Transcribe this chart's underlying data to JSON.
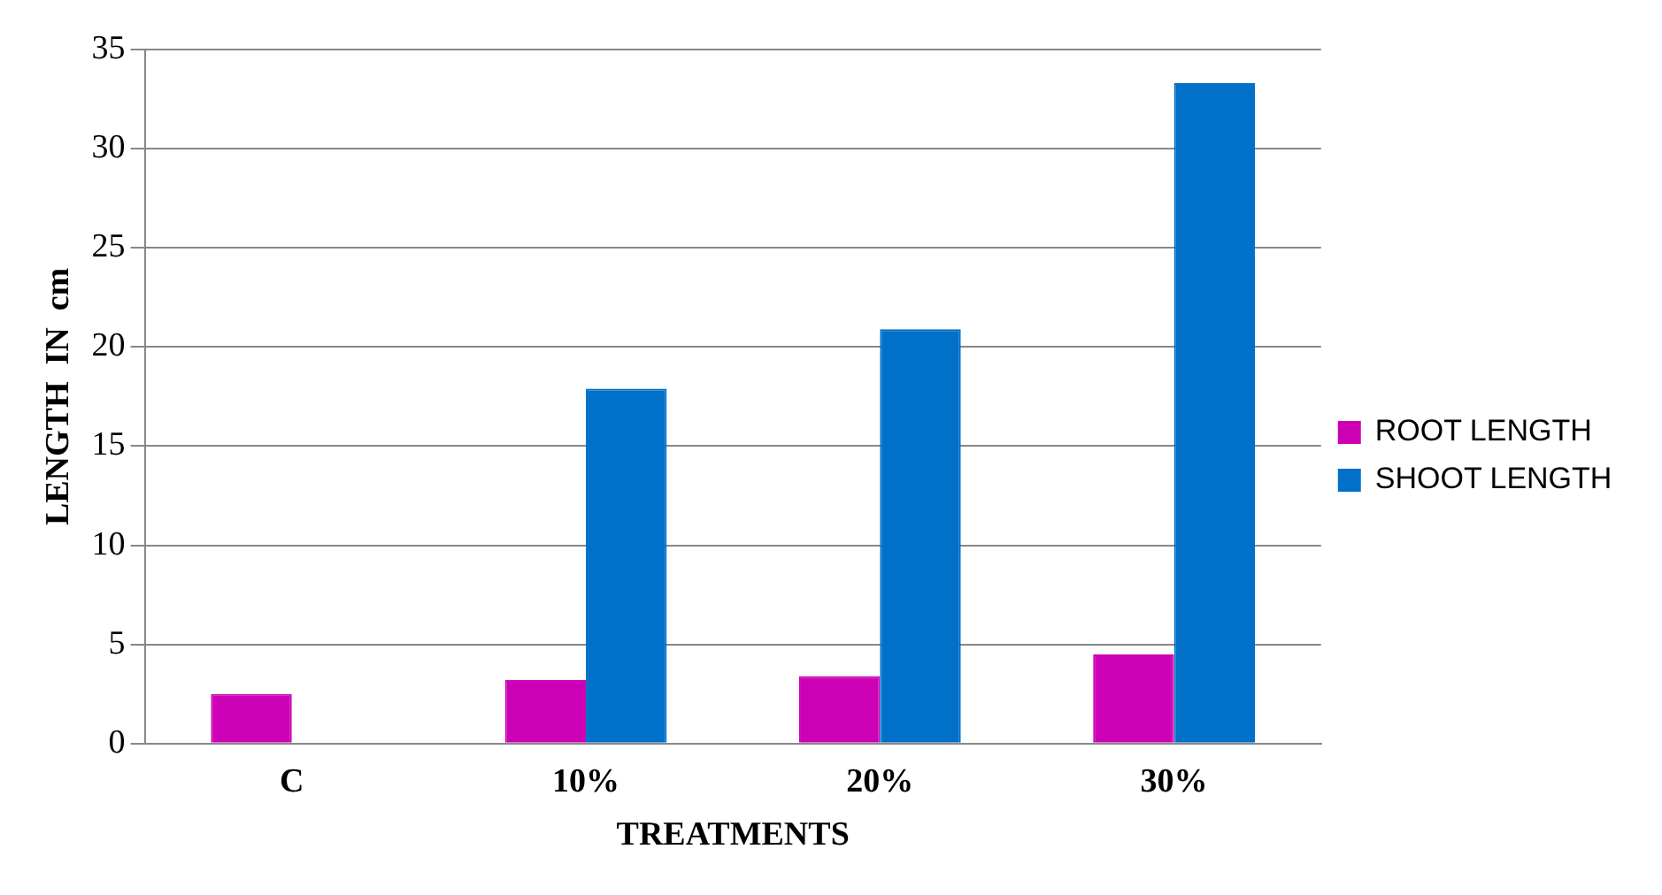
{
  "chart_data": {
    "type": "bar",
    "xlabel": "TREATMENTS",
    "ylabel": "LENGTH  IN  cm",
    "categories": [
      "C",
      "10%",
      "20%",
      "30%"
    ],
    "series": [
      {
        "name": "ROOT LENGTH",
        "color": "#cc00b4",
        "values": [
          2.5,
          3.2,
          3.4,
          4.5
        ]
      },
      {
        "name": "SHOOT LENGTH",
        "color": "#0070c8",
        "values": [
          null,
          17.9,
          20.9,
          33.3
        ]
      }
    ],
    "ylim": [
      0,
      35
    ],
    "yticks": [
      0,
      5,
      10,
      15,
      20,
      25,
      30,
      35
    ],
    "grid": "y",
    "legend": "right"
  }
}
